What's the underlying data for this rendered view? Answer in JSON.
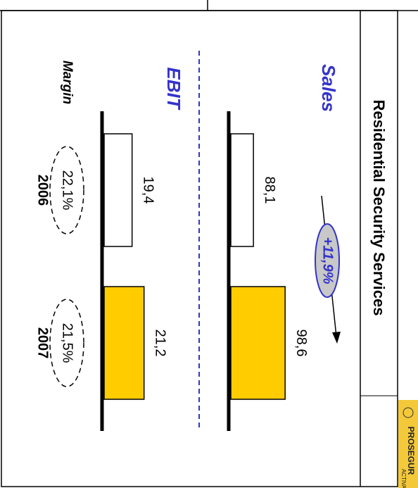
{
  "chart_data": {
    "type": "bar",
    "title": "Residential Security Services",
    "categories": [
      "2006",
      "2007"
    ],
    "colors": [
      "#ffffff",
      "#ffcc00"
    ],
    "panels": [
      {
        "name": "Sales",
        "values": [
          88.1,
          98.6
        ],
        "value_labels": [
          "88,1",
          "98,6"
        ],
        "ylim": [
          80.6,
          108.6
        ]
      },
      {
        "name": "EBIT",
        "values": [
          19.4,
          21.2
        ],
        "value_labels": [
          "19,4",
          "21,2"
        ],
        "ylim": [
          15.2,
          27.9
        ]
      }
    ],
    "margin": {
      "label": "Margin",
      "values": [
        22.1,
        21.5
      ],
      "value_labels": [
        "22,1%",
        "21,5%"
      ]
    },
    "growth": {
      "value": 11.9,
      "label": "+11,9%"
    }
  },
  "logo": {
    "name": "PROSEGUR",
    "sub": "ACTIVA"
  }
}
